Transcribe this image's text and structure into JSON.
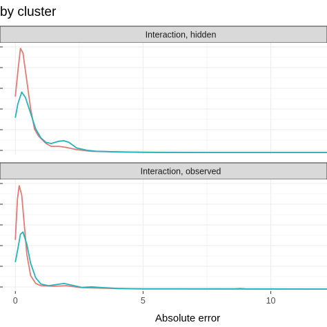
{
  "chart_data": {
    "type": "line",
    "title": "by cluster",
    "xlabel": "Absolute error",
    "ylabel": "",
    "xlim": [
      -0.6,
      12.2
    ],
    "x_ticks": [
      0,
      5,
      10
    ],
    "x_tick_labels": [
      "0",
      "5",
      "10"
    ],
    "grid": true,
    "colors": {
      "series_a": "#E07B73",
      "series_b": "#22B3BD",
      "strip_bg": "#D9D9D9",
      "grid": "#EBEBEB"
    },
    "panels": [
      {
        "label": "Interaction, hidden",
        "ylim": [
          0,
          1.9
        ],
        "series": [
          {
            "color": "#E07B73",
            "points": [
              [
                0,
                1.0
              ],
              [
                0.1,
                1.45
              ],
              [
                0.2,
                1.86
              ],
              [
                0.3,
                1.78
              ],
              [
                0.45,
                1.28
              ],
              [
                0.6,
                0.78
              ],
              [
                0.75,
                0.42
              ],
              [
                0.9,
                0.3
              ],
              [
                1.0,
                0.25
              ],
              [
                1.2,
                0.16
              ],
              [
                1.4,
                0.11
              ],
              [
                1.7,
                0.11
              ],
              [
                2.0,
                0.09
              ],
              [
                2.4,
                0.05
              ],
              [
                3.0,
                0.02
              ],
              [
                4.0,
                0.01
              ],
              [
                5.0,
                0.005
              ],
              [
                6.0,
                0.002
              ],
              [
                8.0,
                0.0
              ],
              [
                12.2,
                0.0
              ]
            ]
          },
          {
            "color": "#22B3BD",
            "points": [
              [
                0,
                0.62
              ],
              [
                0.1,
                0.87
              ],
              [
                0.25,
                1.08
              ],
              [
                0.4,
                0.98
              ],
              [
                0.6,
                0.7
              ],
              [
                0.8,
                0.42
              ],
              [
                1.0,
                0.26
              ],
              [
                1.2,
                0.18
              ],
              [
                1.4,
                0.16
              ],
              [
                1.7,
                0.2
              ],
              [
                1.9,
                0.21
              ],
              [
                2.1,
                0.18
              ],
              [
                2.4,
                0.08
              ],
              [
                2.8,
                0.04
              ],
              [
                3.2,
                0.02
              ],
              [
                4.0,
                0.01
              ],
              [
                5.0,
                0.003
              ],
              [
                6.0,
                0.0
              ],
              [
                12.2,
                0.0
              ]
            ]
          }
        ]
      },
      {
        "label": "Interaction, observed",
        "ylim": [
          0,
          1.9
        ],
        "series": [
          {
            "color": "#E07B73",
            "points": [
              [
                0,
                0.88
              ],
              [
                0.08,
                1.6
              ],
              [
                0.15,
                1.85
              ],
              [
                0.25,
                1.68
              ],
              [
                0.35,
                1.15
              ],
              [
                0.45,
                0.62
              ],
              [
                0.6,
                0.24
              ],
              [
                0.8,
                0.1
              ],
              [
                1.0,
                0.06
              ],
              [
                1.5,
                0.05
              ],
              [
                2.0,
                0.06
              ],
              [
                2.5,
                0.03
              ],
              [
                3.0,
                0.02
              ],
              [
                4.0,
                0.01
              ],
              [
                5.0,
                0.005
              ],
              [
                8.6,
                0.004
              ],
              [
                8.8,
                0.01
              ],
              [
                9.0,
                0.004
              ],
              [
                12.2,
                0.0
              ]
            ]
          },
          {
            "color": "#22B3BD",
            "points": [
              [
                0,
                0.48
              ],
              [
                0.1,
                0.72
              ],
              [
                0.2,
                0.98
              ],
              [
                0.3,
                1.02
              ],
              [
                0.45,
                0.8
              ],
              [
                0.6,
                0.46
              ],
              [
                0.8,
                0.2
              ],
              [
                1.0,
                0.09
              ],
              [
                1.3,
                0.06
              ],
              [
                1.6,
                0.08
              ],
              [
                1.9,
                0.1
              ],
              [
                2.2,
                0.07
              ],
              [
                2.6,
                0.03
              ],
              [
                3.0,
                0.04
              ],
              [
                3.3,
                0.03
              ],
              [
                4.0,
                0.01
              ],
              [
                5.0,
                0.003
              ],
              [
                12.2,
                0.0
              ]
            ]
          }
        ]
      }
    ]
  }
}
